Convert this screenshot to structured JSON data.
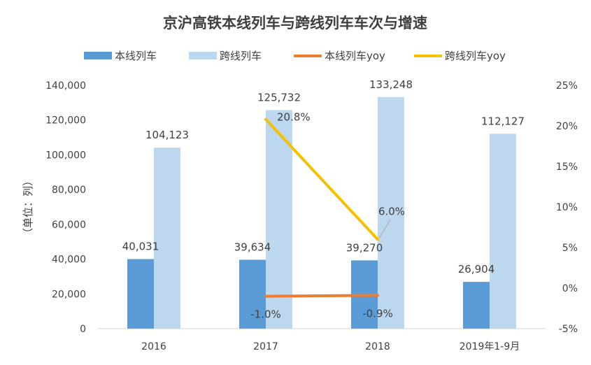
{
  "chart_data": {
    "type": "bar",
    "title": "京沪高铁本线列车与跨线列车车次与增速",
    "ylabel": "（单位：列）",
    "categories": [
      "2016",
      "2017",
      "2018",
      "2019年1-9月"
    ],
    "ylim": [
      0,
      140000
    ],
    "y_ticks": [
      "0",
      "20,000",
      "40,000",
      "60,000",
      "80,000",
      "100,000",
      "120,000",
      "140,000"
    ],
    "y2lim": [
      -5,
      25
    ],
    "y2_ticks": [
      "-5%",
      "0%",
      "5%",
      "10%",
      "15%",
      "20%",
      "25%"
    ],
    "legend_position": "top",
    "grid": false,
    "series": [
      {
        "name": "本线列车",
        "kind": "bar",
        "axis": "left",
        "color": "#5b9bd5",
        "values": [
          40031,
          39634,
          39270,
          26904
        ],
        "labels": [
          "40,031",
          "39,634",
          "39,270",
          "26,904"
        ]
      },
      {
        "name": "跨线列车",
        "kind": "bar",
        "axis": "left",
        "color": "#bdd7ee",
        "values": [
          104123,
          125732,
          133248,
          112127
        ],
        "labels": [
          "104,123",
          "125,732",
          "133,248",
          "112,127"
        ]
      },
      {
        "name": "本线列车yoy",
        "kind": "line",
        "axis": "right",
        "color": "#ed7d31",
        "values": [
          null,
          -1.0,
          -0.9,
          null
        ],
        "labels": [
          "",
          "-1.0%",
          "-0.9%",
          ""
        ]
      },
      {
        "name": "跨线列车yoy",
        "kind": "line",
        "axis": "right",
        "color": "#f5c000",
        "values": [
          null,
          20.8,
          6.0,
          null
        ],
        "labels": [
          "",
          "20.8%",
          "6.0%",
          ""
        ]
      }
    ]
  }
}
